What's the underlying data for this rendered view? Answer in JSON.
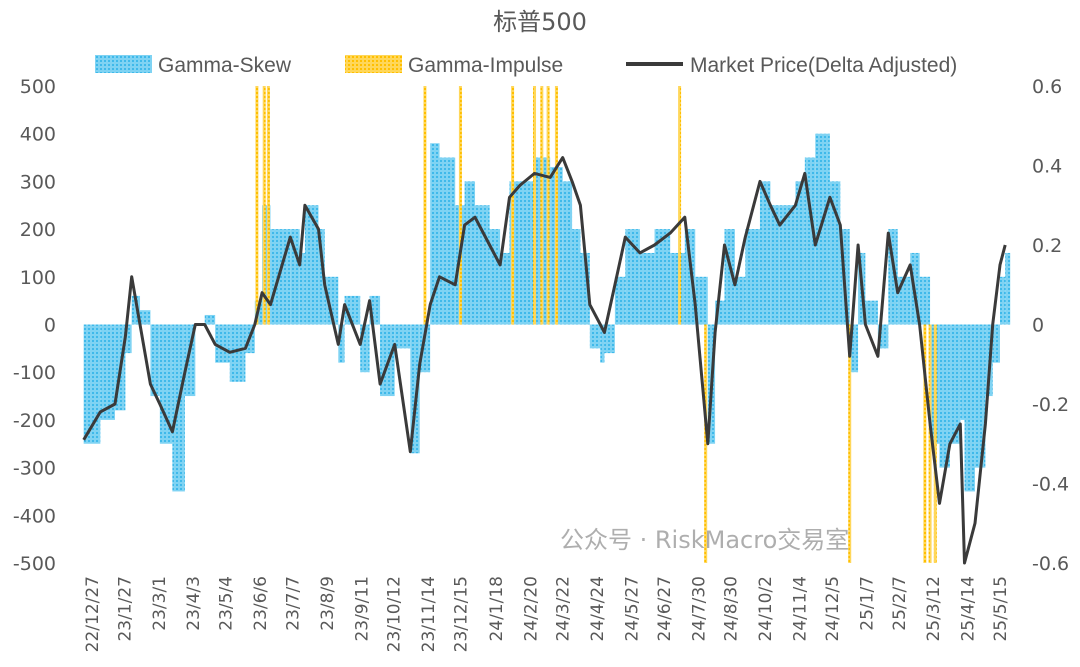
{
  "chart_data": {
    "type": "bar+line",
    "title": "标普500",
    "legend": {
      "placement": "top",
      "entries": [
        "Gamma-Skew",
        "Gamma-Impulse",
        "Market Price(Delta Adjusted)"
      ]
    },
    "colors": {
      "gamma_skew": "#4fc3ee",
      "gamma_impulse": "#ffc000",
      "market_price": "#3a3a3a"
    },
    "y_left": {
      "ylim": [
        -500,
        500
      ],
      "ticks": [
        "500",
        "400",
        "300",
        "200",
        "100",
        "0",
        "-100",
        "-200",
        "-300",
        "-400",
        "-500"
      ]
    },
    "y_right": {
      "ylim": [
        -0.6,
        0.6
      ],
      "ticks": [
        "0.6",
        "0.4",
        "0.2",
        "0",
        "-0.2",
        "-0.4",
        "-0.6"
      ]
    },
    "x_tick_labels": [
      "22/12/27",
      "23/1/27",
      "23/3/1",
      "23/4/3",
      "23/5/4",
      "23/6/6",
      "23/7/7",
      "23/8/9",
      "23/9/11",
      "23/10/12",
      "23/11/14",
      "23/12/15",
      "24/1/18",
      "24/2/20",
      "24/3/22",
      "24/4/24",
      "24/5/27",
      "24/6/27",
      "24/7/30",
      "24/8/30",
      "24/10/2",
      "24/11/4",
      "24/12/5",
      "25/1/7",
      "25/2/7",
      "25/3/12",
      "25/4/14",
      "25/5/15"
    ],
    "grid": false,
    "x": [
      "22/12/19",
      "23/1/4",
      "23/1/18",
      "23/1/28",
      "23/2/3",
      "23/2/11",
      "23/2/21",
      "23/3/2",
      "23/3/14",
      "23/3/26",
      "23/4/5",
      "23/4/14",
      "23/4/24",
      "23/5/8",
      "23/5/23",
      "23/6/1",
      "23/6/8",
      "23/6/16",
      "23/7/5",
      "23/7/14",
      "23/7/19",
      "23/8/1",
      "23/8/7",
      "23/8/20",
      "23/8/26",
      "23/9/10",
      "23/9/19",
      "23/9/29",
      "23/10/13",
      "23/10/28",
      "23/11/6",
      "23/11/16",
      "23/11/25",
      "23/12/10",
      "23/12/19",
      "23/12/29",
      "24/1/12",
      "24/1/22",
      "24/1/31",
      "24/2/10",
      "24/2/24",
      "24/3/10",
      "24/3/22",
      "24/3/31",
      "24/4/8",
      "24/4/17",
      "24/4/27",
      "24/5/1",
      "24/5/11",
      "24/5/21",
      "24/6/4",
      "24/6/18",
      "24/7/3",
      "24/7/17",
      "24/7/27",
      "24/8/8",
      "24/8/15",
      "24/8/24",
      "24/9/3",
      "24/9/13",
      "24/9/27",
      "24/10/7",
      "24/10/16",
      "24/10/31",
      "24/11/9",
      "24/11/19",
      "24/12/3",
      "24/12/13",
      "24/12/22",
      "24/12/30",
      "25/1/6",
      "25/1/18",
      "25/1/28",
      "25/2/6",
      "25/2/18",
      "25/2/27",
      "25/3/9",
      "25/3/18",
      "25/3/28",
      "25/4/7",
      "25/4/11",
      "25/4/21",
      "25/5/1",
      "25/5/8",
      "25/5/15",
      "25/5/20"
    ],
    "series": [
      {
        "name": "Gamma-Skew",
        "type": "bar",
        "axis": "left",
        "values": [
          -250,
          -200,
          -180,
          -60,
          60,
          30,
          -150,
          -250,
          -350,
          -150,
          0,
          20,
          -80,
          -120,
          -60,
          50,
          250,
          200,
          200,
          150,
          250,
          200,
          100,
          -80,
          60,
          -100,
          60,
          -150,
          -50,
          -270,
          -100,
          380,
          350,
          250,
          300,
          250,
          200,
          150,
          300,
          300,
          350,
          330,
          300,
          200,
          150,
          -50,
          -80,
          -60,
          100,
          200,
          150,
          200,
          150,
          200,
          100,
          -250,
          50,
          200,
          100,
          200,
          300,
          250,
          250,
          300,
          350,
          400,
          300,
          200,
          -100,
          150,
          50,
          -50,
          200,
          100,
          150,
          100,
          -250,
          -300,
          -250,
          -200,
          -350,
          -300,
          -150,
          -80,
          100,
          150
        ]
      },
      {
        "name": "Market Price(Delta Adjusted)",
        "type": "line",
        "axis": "right",
        "values": [
          -0.29,
          -0.22,
          -0.2,
          -0.03,
          0.12,
          0.0,
          -0.15,
          -0.2,
          -0.27,
          -0.12,
          0.0,
          0.0,
          -0.05,
          -0.07,
          -0.06,
          0.0,
          0.08,
          0.05,
          0.22,
          0.15,
          0.3,
          0.24,
          0.1,
          -0.05,
          0.05,
          -0.05,
          0.06,
          -0.15,
          -0.05,
          -0.32,
          -0.1,
          0.05,
          0.12,
          0.1,
          0.25,
          0.27,
          0.2,
          0.15,
          0.32,
          0.35,
          0.38,
          0.37,
          0.42,
          0.36,
          0.3,
          0.05,
          0.0,
          -0.02,
          0.1,
          0.22,
          0.18,
          0.2,
          0.23,
          0.27,
          0.05,
          -0.3,
          -0.02,
          0.2,
          0.1,
          0.22,
          0.36,
          0.3,
          0.25,
          0.3,
          0.38,
          0.2,
          0.32,
          0.25,
          -0.08,
          0.2,
          0.0,
          -0.08,
          0.23,
          0.08,
          0.15,
          0.0,
          -0.25,
          -0.45,
          -0.3,
          -0.25,
          -0.6,
          -0.5,
          -0.25,
          0.0,
          0.15,
          0.2
        ]
      }
    ],
    "gamma_impulse": {
      "name": "Gamma-Impulse",
      "type": "bar",
      "axis": "left",
      "x": [
        "23/6/3",
        "23/6/10",
        "23/6/14",
        "23/11/11",
        "23/12/15",
        "24/2/3",
        "24/2/24",
        "24/3/2",
        "24/3/8",
        "24/3/16",
        "24/7/12",
        "24/8/6",
        "24/12/22",
        "25/3/4",
        "25/3/9",
        "25/3/14"
      ],
      "values": [
        500,
        500,
        500,
        500,
        500,
        500,
        500,
        500,
        500,
        500,
        500,
        -500,
        -500,
        -500,
        -500,
        -500
      ]
    }
  },
  "watermark": "公众号 · RiskMacro交易室"
}
